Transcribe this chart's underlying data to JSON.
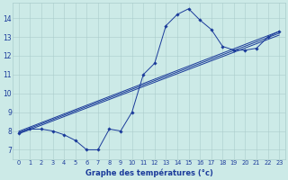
{
  "xlabel": "Graphe des températures (°c)",
  "xlim": [
    -0.5,
    23.5
  ],
  "ylim": [
    6.5,
    14.8
  ],
  "yticks": [
    7,
    8,
    9,
    10,
    11,
    12,
    13,
    14
  ],
  "xticks": [
    0,
    1,
    2,
    3,
    4,
    5,
    6,
    7,
    8,
    9,
    10,
    11,
    12,
    13,
    14,
    15,
    16,
    17,
    18,
    19,
    20,
    21,
    22,
    23
  ],
  "background_color": "#cceae7",
  "grid_color": "#aacccc",
  "line_color": "#1a3a9a",
  "curve1_x": [
    0,
    1,
    2,
    3,
    4,
    5,
    6,
    7,
    8,
    9,
    10,
    11,
    12,
    13,
    14,
    15,
    16,
    17,
    18,
    19,
    20,
    21,
    22,
    23
  ],
  "curve1_y": [
    7.9,
    8.1,
    8.1,
    8.0,
    7.8,
    7.5,
    7.0,
    7.0,
    8.1,
    8.0,
    9.0,
    11.0,
    11.6,
    13.6,
    14.2,
    14.5,
    13.9,
    13.4,
    12.5,
    12.3,
    12.3,
    12.4,
    13.0,
    13.3
  ],
  "trend_lines": [
    {
      "x0": 0,
      "y0": 7.85,
      "x1": 23,
      "y1": 13.1
    },
    {
      "x0": 0,
      "y0": 7.92,
      "x1": 23,
      "y1": 13.2
    },
    {
      "x0": 0,
      "y0": 7.98,
      "x1": 23,
      "y1": 13.3
    }
  ],
  "figwidth": 3.2,
  "figheight": 2.0,
  "dpi": 100
}
